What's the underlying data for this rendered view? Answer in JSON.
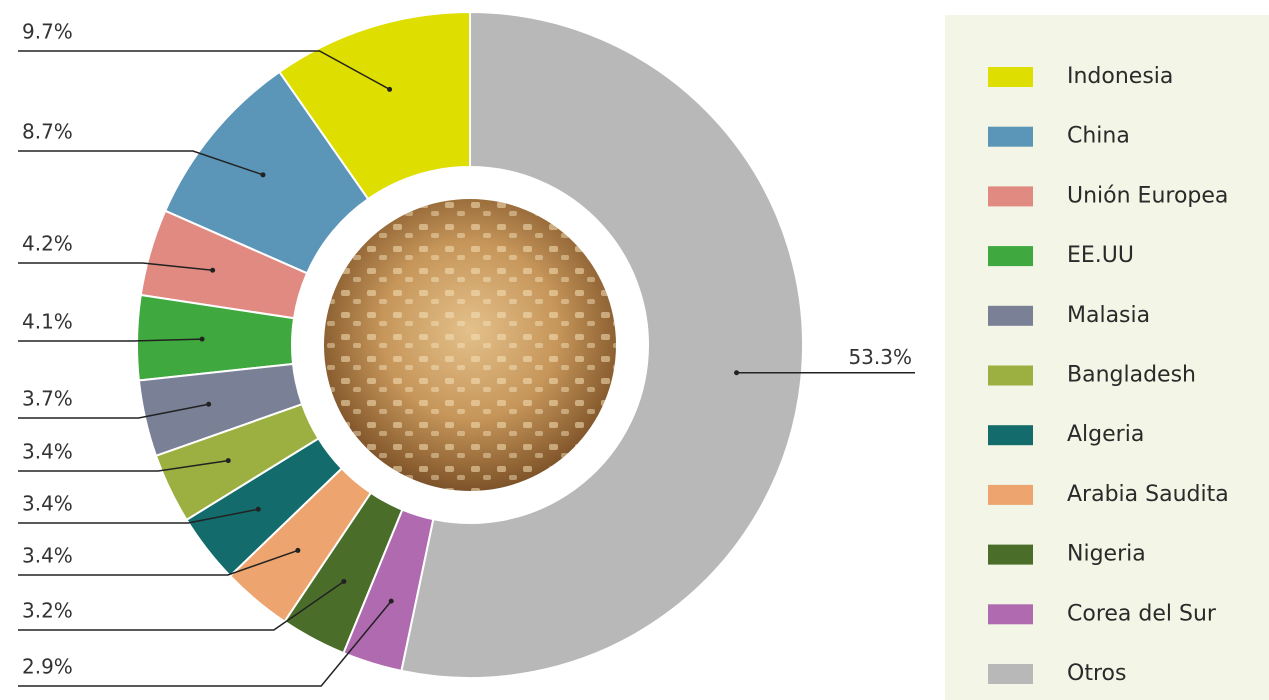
{
  "chart_data": {
    "type": "donut",
    "categories": [
      "Indonesia",
      "China",
      "Unión Europea",
      "EE.UU",
      "Malasia",
      "Bangladesh",
      "Algeria",
      "Arabia Saudita",
      "Nigeria",
      "Corea del Sur",
      "Otros"
    ],
    "values": [
      9.7,
      8.7,
      4.2,
      4.1,
      3.7,
      3.4,
      3.4,
      3.4,
      3.2,
      2.9,
      53.3
    ],
    "value_labels": [
      "9.7%",
      "8.7%",
      "4.2%",
      "4.1%",
      "3.7%",
      "3.4%",
      "3.4%",
      "3.4%",
      "3.2%",
      "2.9%",
      "53.3%"
    ],
    "colors": [
      "#dede00",
      "#5b95b8",
      "#e08a82",
      "#3fa83e",
      "#7a8096",
      "#9bb040",
      "#136b6b",
      "#eda46f",
      "#4a6e2a",
      "#b06ab0",
      "#b8b8b8"
    ],
    "legend": "right"
  }
}
